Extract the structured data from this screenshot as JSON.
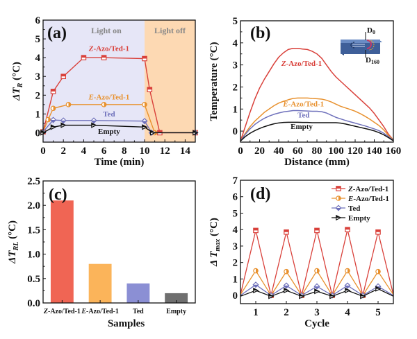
{
  "chart_data": [
    {
      "panel": "(a)",
      "type": "line",
      "xlabel": "Time (min)",
      "ylabel": "ΔT_R (°C)",
      "xlim": [
        0,
        15
      ],
      "ylim": [
        -0.5,
        6
      ],
      "xticks": [
        0,
        2,
        4,
        6,
        8,
        10,
        12,
        14
      ],
      "yticks": [
        0,
        1,
        2,
        3,
        4,
        5,
        6
      ],
      "regions": [
        {
          "label": "Light on",
          "x": [
            0,
            10
          ],
          "color": "#e6e6f7"
        },
        {
          "label": "Light off",
          "x": [
            10,
            15
          ],
          "color": "#fdd9b3"
        }
      ],
      "series": [
        {
          "name": "Z-Azo/Ted-1",
          "color": "#d9403a",
          "marker": "square",
          "x": [
            0,
            1,
            2,
            4,
            6,
            10,
            10.5,
            11.5,
            15
          ],
          "y": [
            0.05,
            2.2,
            3.0,
            4.0,
            4.0,
            3.95,
            2.3,
            0.0,
            0.0
          ]
        },
        {
          "name": "E-Azo/Ted-1",
          "color": "#e8912e",
          "marker": "circle",
          "x": [
            0,
            0.5,
            1,
            2.5,
            6,
            10,
            11,
            15
          ],
          "y": [
            0.05,
            0.7,
            1.3,
            1.5,
            1.5,
            1.5,
            0.0,
            0.0
          ]
        },
        {
          "name": "Ted",
          "color": "#6e70bb",
          "marker": "diamond",
          "x": [
            0,
            1,
            2,
            5,
            10,
            10.7,
            15
          ],
          "y": [
            0.05,
            0.68,
            0.65,
            0.65,
            0.62,
            0.0,
            0.0
          ]
        },
        {
          "name": "Empty",
          "color": "#111111",
          "marker": "triangle-right",
          "x": [
            0,
            1,
            2,
            5,
            10,
            10.8,
            15
          ],
          "y": [
            0.0,
            0.3,
            0.4,
            0.4,
            0.3,
            0.0,
            0.0
          ]
        }
      ],
      "annotations": [
        {
          "text": "Z-Azo/Ted-1",
          "color": "#d9403a"
        },
        {
          "text": "E-Azo/Ted-1",
          "color": "#e8912e"
        },
        {
          "text": "Ted",
          "color": "#6e70bb"
        },
        {
          "text": "Empty",
          "color": "#111111"
        }
      ]
    },
    {
      "panel": "(b)",
      "type": "line",
      "xlabel": "Distance (mm)",
      "ylabel": "Temperature (°C)",
      "xlim": [
        0,
        160
      ],
      "ylim": [
        -0.5,
        5
      ],
      "xticks": [
        0,
        20,
        40,
        60,
        80,
        100,
        120,
        140,
        160
      ],
      "yticks": [
        0,
        1,
        2,
        3,
        4,
        5
      ],
      "inset_labels": [
        "D0",
        "D160"
      ],
      "series": [
        {
          "name": "Z-Azo/Ted-1",
          "color": "#d9403a",
          "x": [
            0,
            5,
            10,
            15,
            20,
            25,
            30,
            35,
            40,
            45,
            50,
            55,
            60,
            65,
            70,
            75,
            80,
            85,
            90,
            95,
            100,
            105,
            110,
            115,
            120,
            125,
            130,
            135,
            140,
            145,
            150,
            155,
            160
          ],
          "y": [
            -0.45,
            0.2,
            0.85,
            1.45,
            1.95,
            2.35,
            2.7,
            3.05,
            3.35,
            3.55,
            3.7,
            3.75,
            3.75,
            3.72,
            3.7,
            3.62,
            3.5,
            3.3,
            3.0,
            2.7,
            2.45,
            2.25,
            2.05,
            1.85,
            1.65,
            1.45,
            1.25,
            1.05,
            0.8,
            0.5,
            0.2,
            -0.15,
            -0.4
          ]
        },
        {
          "name": "E-Azo/Ted-1",
          "color": "#e8912e",
          "x": [
            0,
            5,
            10,
            15,
            20,
            25,
            30,
            35,
            40,
            45,
            50,
            55,
            60,
            65,
            70,
            75,
            80,
            85,
            90,
            95,
            100,
            105,
            110,
            115,
            120,
            125,
            130,
            135,
            140,
            145,
            150,
            155,
            160
          ],
          "y": [
            -0.45,
            -0.1,
            0.2,
            0.45,
            0.65,
            0.85,
            1.0,
            1.15,
            1.27,
            1.35,
            1.42,
            1.48,
            1.5,
            1.5,
            1.5,
            1.48,
            1.47,
            1.45,
            1.4,
            1.32,
            1.22,
            1.12,
            1.05,
            0.98,
            0.9,
            0.8,
            0.68,
            0.55,
            0.4,
            0.25,
            0.05,
            -0.2,
            -0.4
          ]
        },
        {
          "name": "Ted",
          "color": "#6e70bb",
          "x": [
            0,
            5,
            10,
            15,
            20,
            25,
            30,
            35,
            40,
            45,
            50,
            55,
            60,
            65,
            70,
            75,
            80,
            85,
            90,
            95,
            100,
            105,
            110,
            115,
            120,
            125,
            130,
            135,
            140,
            145,
            150,
            155,
            160
          ],
          "y": [
            -0.45,
            -0.15,
            0.1,
            0.3,
            0.45,
            0.58,
            0.68,
            0.76,
            0.82,
            0.87,
            0.9,
            0.93,
            0.93,
            0.92,
            0.91,
            0.9,
            0.9,
            0.88,
            0.82,
            0.72,
            0.62,
            0.55,
            0.48,
            0.42,
            0.36,
            0.3,
            0.24,
            0.17,
            0.1,
            0.02,
            -0.1,
            -0.25,
            -0.42
          ]
        },
        {
          "name": "Empty",
          "color": "#111111",
          "x": [
            0,
            5,
            10,
            15,
            20,
            25,
            30,
            35,
            40,
            45,
            50,
            55,
            60,
            65,
            70,
            75,
            80,
            85,
            90,
            95,
            100,
            105,
            110,
            115,
            120,
            125,
            130,
            135,
            140,
            145,
            150,
            155,
            160
          ],
          "y": [
            -0.45,
            -0.25,
            -0.1,
            0.02,
            0.12,
            0.2,
            0.27,
            0.33,
            0.37,
            0.39,
            0.4,
            0.4,
            0.4,
            0.39,
            0.39,
            0.38,
            0.38,
            0.38,
            0.38,
            0.38,
            0.38,
            0.36,
            0.32,
            0.27,
            0.22,
            0.17,
            0.12,
            0.07,
            0.01,
            -0.07,
            -0.17,
            -0.3,
            -0.44
          ]
        }
      ],
      "annotations": [
        {
          "text": "Z-Azo/Ted-1",
          "color": "#d9403a"
        },
        {
          "text": "E-Azo/Ted-1",
          "color": "#e8912e"
        },
        {
          "text": "Ted",
          "color": "#6e70bb"
        },
        {
          "text": "Empty",
          "color": "#111111"
        }
      ]
    },
    {
      "panel": "(c)",
      "type": "bar",
      "xlabel": "Samples",
      "ylabel": "ΔT_RL (°C)",
      "ylim": [
        0,
        2.5
      ],
      "yticks": [
        "0.0",
        "0.5",
        "1.0",
        "1.5",
        "2.0",
        "2.5"
      ],
      "categories": [
        "Z-Azo/Ted-1",
        "E-Azo/Ted-1",
        "Ted",
        "Empty"
      ],
      "values": [
        2.1,
        0.8,
        0.4,
        0.2
      ],
      "colors": [
        "#f06554",
        "#fbb45a",
        "#8b8fd4",
        "#6f6f6f"
      ]
    },
    {
      "panel": "(d)",
      "type": "line",
      "xlabel": "Cycle",
      "ylabel": "ΔT_max (°C)",
      "xlim": [
        0.5,
        5.5
      ],
      "ylim": [
        -0.5,
        7
      ],
      "xticks": [
        1,
        2,
        3,
        4,
        5
      ],
      "yticks": [
        0,
        1,
        2,
        3,
        4,
        5,
        6,
        7
      ],
      "legend": "top-right",
      "series": [
        {
          "name": "Z-Azo/Ted-1",
          "color": "#d9403a",
          "marker": "square",
          "x": [
            0.5,
            1,
            1.5,
            2,
            2.5,
            3,
            3.5,
            4,
            4.5,
            5,
            5.5
          ],
          "y": [
            0.05,
            3.95,
            0.0,
            3.85,
            0.0,
            3.95,
            0.0,
            4.0,
            0.0,
            3.85,
            0.05
          ]
        },
        {
          "name": "E-Azo/Ted-1",
          "color": "#e8912e",
          "marker": "circle",
          "x": [
            0.5,
            1,
            1.5,
            2,
            2.5,
            3,
            3.5,
            4,
            4.5,
            5,
            5.5
          ],
          "y": [
            0.05,
            1.5,
            0.0,
            1.45,
            0.0,
            1.5,
            0.0,
            1.5,
            0.0,
            1.45,
            0.05
          ]
        },
        {
          "name": "Ted",
          "color": "#6e70bb",
          "marker": "diamond",
          "x": [
            0.5,
            1,
            1.5,
            2,
            2.5,
            3,
            3.5,
            4,
            4.5,
            5,
            5.5
          ],
          "y": [
            0.0,
            0.65,
            0.0,
            0.6,
            0.0,
            0.55,
            0.0,
            0.6,
            0.0,
            0.55,
            0.0
          ]
        },
        {
          "name": "Empty",
          "color": "#111111",
          "marker": "triangle-right",
          "x": [
            0.5,
            1,
            1.5,
            2,
            2.5,
            3,
            3.5,
            4,
            4.5,
            5,
            5.5
          ],
          "y": [
            -0.05,
            0.3,
            -0.05,
            0.3,
            -0.05,
            0.25,
            -0.05,
            0.3,
            -0.05,
            0.4,
            -0.05
          ]
        }
      ]
    }
  ]
}
